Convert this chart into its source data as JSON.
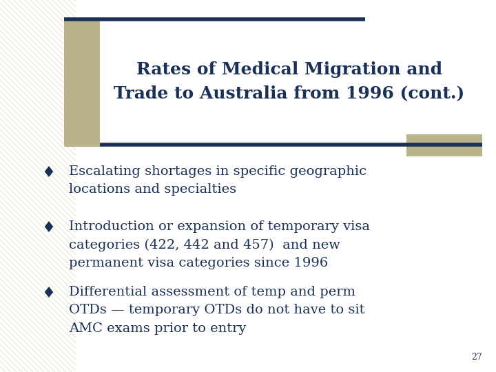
{
  "title_line1": "Rates of Medical Migration and",
  "title_line2": "Trade to Australia from 1996 (cont.)",
  "bullets": [
    "Escalating shortages in specific geographic\nlocations and specialties",
    "Introduction or expansion of temporary visa\ncategories (422, 442 and 457)  and new\npermanent visa categories since 1996",
    "Differential assessment of temp and perm\nOTDs — temporary OTDs do not have to sit\nAMC exams prior to entry"
  ],
  "bg_color": "#ffffff",
  "title_color": "#1a3057",
  "bullet_color": "#1a3057",
  "line_color": "#1a3057",
  "accent_color": "#b8b38a",
  "stripe_color": "#e8e4d0",
  "page_number": "27",
  "title_fontsize": 18,
  "bullet_fontsize": 14
}
